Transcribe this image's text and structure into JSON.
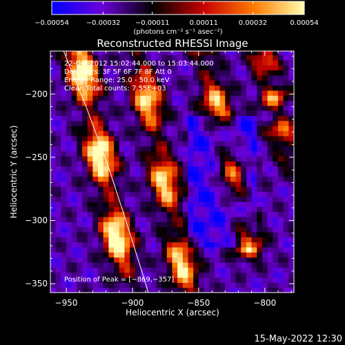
{
  "chart_data": {
    "type": "heatmap",
    "title": "Reconstructed RHESSI Image",
    "xlabel": "Heliocentric X (arcsec)",
    "ylabel": "Heliocentric Y (arcsec)",
    "xlim": [
      -962,
      -778
    ],
    "ylim": [
      -357,
      -166
    ],
    "x_ticks": [
      -950,
      -900,
      -850,
      -800
    ],
    "x_tick_labels": [
      "−950",
      "−900",
      "−850",
      "−800"
    ],
    "y_ticks": [
      -200,
      -250,
      -300,
      -350
    ],
    "y_tick_labels": [
      "−200",
      "−250",
      "−300",
      "−350"
    ],
    "colorbar": {
      "range": [
        -0.00054,
        0.00054
      ],
      "ticks": [
        -0.00054,
        -0.00032,
        -0.00011,
        0.00011,
        0.00032,
        0.00054
      ],
      "tick_labels": [
        "−0.00054",
        "−0.00032",
        "−0.00011",
        "0.00011",
        "0.00032",
        "0.00054"
      ],
      "units": "(photons cm⁻² s⁻¹ asec⁻²)",
      "stops": [
        "#0000ff",
        "#6a00d8",
        "#000000",
        "#c80000",
        "#ff7a00",
        "#ffffb0"
      ]
    },
    "annotations": {
      "time_range": "22‑Oct‑2012 15:02:44.000 to 15:03:44.000",
      "detectors": "Detectors: 3F 5F 6F 7F 8F  Att 0",
      "energy": "Energy Range: 25.0 ‑ 50.0 keV",
      "clean": "Clean     Total counts: 7.55E+03",
      "peak": "Position of Peak = [−869,−357]"
    },
    "limb": [
      [
        -952,
        -166
      ],
      [
        -935,
        -210
      ],
      [
        -918,
        -258
      ],
      [
        -905,
        -300
      ],
      [
        -893,
        -340
      ],
      [
        -888,
        -357
      ]
    ],
    "bright_ridges": [
      {
        "x0": -940,
        "y0": -170,
        "x1": -905,
        "y1": -345,
        "peak": 0.00054
      },
      {
        "x0": -895,
        "y0": -172,
        "x1": -860,
        "y1": -348,
        "peak": 0.00045
      },
      {
        "x0": -845,
        "y0": -168,
        "x1": -812,
        "y1": -320,
        "peak": 0.0004
      },
      {
        "x0": -800,
        "y0": -175,
        "x1": -782,
        "y1": -250,
        "peak": 0.00035
      }
    ]
  },
  "footer": {
    "date": "15‑May‑2022 12:30"
  }
}
